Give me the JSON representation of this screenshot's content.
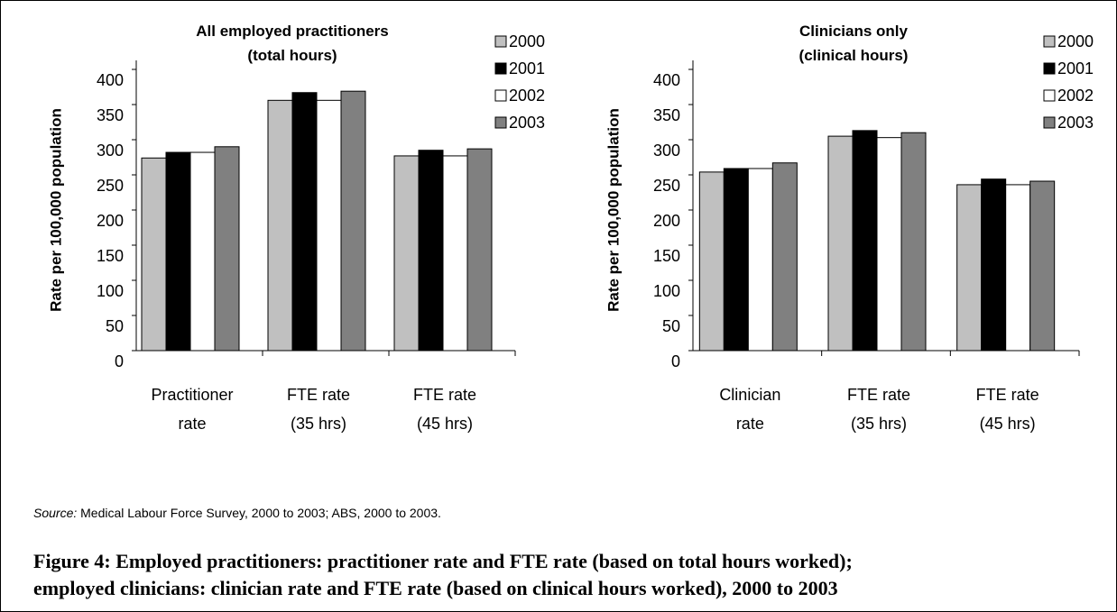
{
  "chart_data": [
    {
      "type": "bar",
      "title": "All employed practitioners\n(total hours)",
      "y_label": "Rate per 100,000 population",
      "categories": [
        "Practitioner\nrate",
        "FTE rate\n(35 hrs)",
        "FTE rate\n(45 hrs)"
      ],
      "series": [
        {
          "name": "2000",
          "color": "#c0c0c0",
          "values": [
            274,
            356,
            277
          ]
        },
        {
          "name": "2001",
          "color": "#000000",
          "values": [
            282,
            367,
            285
          ]
        },
        {
          "name": "2002",
          "color": "#ffffff",
          "values": [
            282,
            356,
            277
          ]
        },
        {
          "name": "2003",
          "color": "#808080",
          "values": [
            290,
            369,
            287
          ]
        }
      ],
      "ylim": [
        0,
        400
      ],
      "yticks": [
        0,
        50,
        100,
        150,
        200,
        250,
        300,
        350,
        400
      ],
      "legend": "upper right"
    },
    {
      "type": "bar",
      "title": "Clinicians only\n(clinical hours)",
      "y_label": "Rate per 100,000 population",
      "categories": [
        "Clinician\nrate",
        "FTE rate\n(35 hrs)",
        "FTE rate\n(45 hrs)"
      ],
      "series": [
        {
          "name": "2000",
          "color": "#c0c0c0",
          "values": [
            254,
            305,
            236
          ]
        },
        {
          "name": "2001",
          "color": "#000000",
          "values": [
            259,
            313,
            244
          ]
        },
        {
          "name": "2002",
          "color": "#ffffff",
          "values": [
            259,
            303,
            236
          ]
        },
        {
          "name": "2003",
          "color": "#808080",
          "values": [
            267,
            310,
            241
          ]
        }
      ],
      "ylim": [
        0,
        400
      ],
      "yticks": [
        0,
        50,
        100,
        150,
        200,
        250,
        300,
        350,
        400
      ],
      "legend": "upper right"
    }
  ],
  "source": {
    "label": "Source:",
    "text": "Medical Labour Force Survey, 2000 to 2003; ABS, 2000 to 2003."
  },
  "caption": "Figure 4: Employed practitioners: practitioner rate and FTE rate (based on total hours worked);\nemployed clinicians: clinician rate and FTE rate (based on clinical hours worked), 2000 to 2003"
}
